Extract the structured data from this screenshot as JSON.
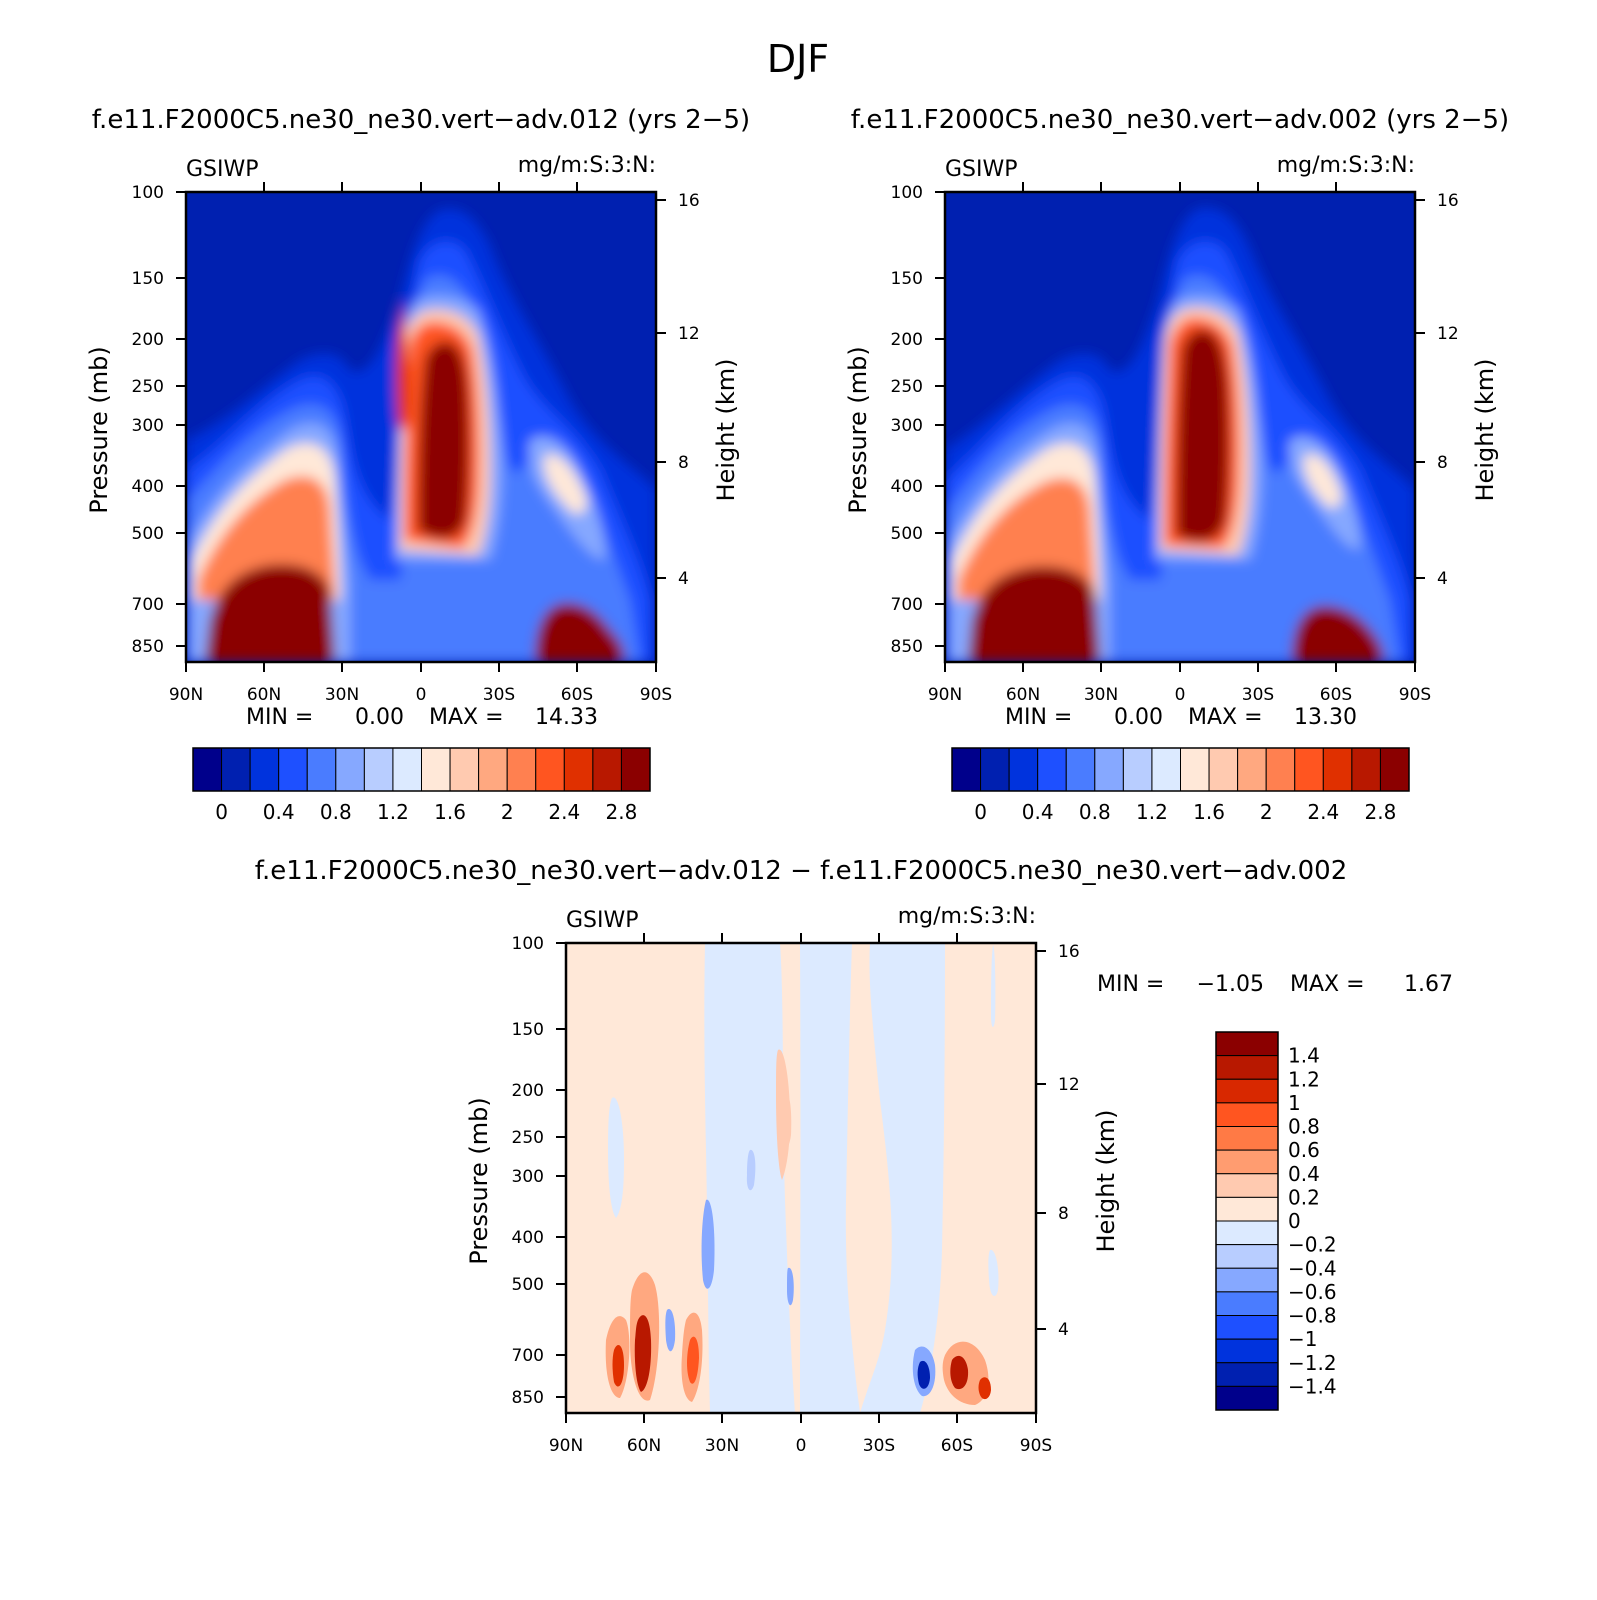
{
  "figure": {
    "title": "DJF"
  },
  "chart_data": [
    {
      "type": "heatmap",
      "title": "f.e11.F2000C5.ne30_ne30.vert−adv.012 (yrs 2−5)",
      "left_label": "GSIWP",
      "right_label": "mg/m:S:3:N:",
      "ylabel": "Pressure (mb)",
      "ylabel_right": "Height (km)",
      "x_ticks": [
        "90N",
        "60N",
        "30N",
        "0",
        "30S",
        "60S",
        "90S"
      ],
      "xlim": [
        90,
        -90
      ],
      "y_ticks": [
        "100",
        "150",
        "200",
        "250",
        "300",
        "400",
        "500",
        "700",
        "850"
      ],
      "ylim": [
        100,
        900
      ],
      "y_scale": "log",
      "height_ticks": [
        "4",
        "8",
        "12",
        "16"
      ],
      "stats": {
        "min_label": "MIN =",
        "min": "0.00",
        "max_label": "MAX =",
        "max": "14.33"
      },
      "colorbar": {
        "orientation": "horizontal",
        "labels": [
          "0",
          "0.4",
          "0.8",
          "1.2",
          "1.6",
          "2",
          "2.4",
          "2.8"
        ],
        "colors": [
          "#00008b",
          "#0020b0",
          "#0033dd",
          "#1e50ff",
          "#4a7cff",
          "#86a8ff",
          "#b8cdff",
          "#dceaff",
          "#ffe8d8",
          "#ffcab0",
          "#ffa880",
          "#ff8050",
          "#ff5520",
          "#e03000",
          "#b81800",
          "#8b0000"
        ]
      }
    },
    {
      "type": "heatmap",
      "title": "f.e11.F2000C5.ne30_ne30.vert−adv.002 (yrs 2−5)",
      "left_label": "GSIWP",
      "right_label": "mg/m:S:3:N:",
      "ylabel": "Pressure (mb)",
      "ylabel_right": "Height (km)",
      "x_ticks": [
        "90N",
        "60N",
        "30N",
        "0",
        "30S",
        "60S",
        "90S"
      ],
      "xlim": [
        90,
        -90
      ],
      "y_ticks": [
        "100",
        "150",
        "200",
        "250",
        "300",
        "400",
        "500",
        "700",
        "850"
      ],
      "ylim": [
        100,
        900
      ],
      "y_scale": "log",
      "height_ticks": [
        "4",
        "8",
        "12",
        "16"
      ],
      "stats": {
        "min_label": "MIN =",
        "min": "0.00",
        "max_label": "MAX =",
        "max": "13.30"
      },
      "colorbar": {
        "orientation": "horizontal",
        "labels": [
          "0",
          "0.4",
          "0.8",
          "1.2",
          "1.6",
          "2",
          "2.4",
          "2.8"
        ],
        "colors": [
          "#00008b",
          "#0020b0",
          "#0033dd",
          "#1e50ff",
          "#4a7cff",
          "#86a8ff",
          "#b8cdff",
          "#dceaff",
          "#ffe8d8",
          "#ffcab0",
          "#ffa880",
          "#ff8050",
          "#ff5520",
          "#e03000",
          "#b81800",
          "#8b0000"
        ]
      }
    },
    {
      "type": "heatmap",
      "title": "f.e11.F2000C5.ne30_ne30.vert−adv.012 − f.e11.F2000C5.ne30_ne30.vert−adv.002",
      "left_label": "GSIWP",
      "right_label": "mg/m:S:3:N:",
      "ylabel": "Pressure (mb)",
      "ylabel_right": "Height (km)",
      "x_ticks": [
        "90N",
        "60N",
        "30N",
        "0",
        "30S",
        "60S",
        "90S"
      ],
      "xlim": [
        90,
        -90
      ],
      "y_ticks": [
        "100",
        "150",
        "200",
        "250",
        "300",
        "400",
        "500",
        "700",
        "850"
      ],
      "ylim": [
        100,
        900
      ],
      "y_scale": "log",
      "height_ticks": [
        "4",
        "8",
        "12",
        "16"
      ],
      "stats": {
        "min_label": "MIN =",
        "min": "−1.05",
        "max_label": "MAX =",
        "max": "1.67"
      },
      "colorbar": {
        "orientation": "vertical",
        "labels": [
          "1.4",
          "1.2",
          "1",
          "0.8",
          "0.6",
          "0.4",
          "0.2",
          "0",
          "−0.2",
          "−0.4",
          "−0.6",
          "−0.8",
          "−1",
          "−1.2",
          "−1.4"
        ],
        "colors": [
          "#8b0000",
          "#b81800",
          "#d82800",
          "#ff5520",
          "#ff7a45",
          "#ff9c70",
          "#ffcab0",
          "#ffe8d8",
          "#dceaff",
          "#b8cdff",
          "#86a8ff",
          "#4a7cff",
          "#1e50ff",
          "#0033dd",
          "#0020b0",
          "#00008b"
        ]
      }
    }
  ]
}
